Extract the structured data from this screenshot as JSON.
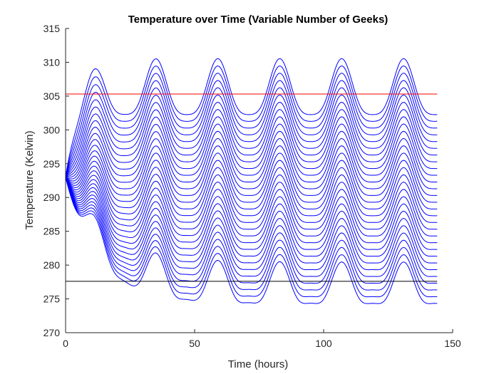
{
  "chart_data": {
    "type": "line",
    "title": "Temperature over Time (Variable Number of Geeks)",
    "xlabel": "Time (hours)",
    "ylabel": "Temperature (Kelvin)",
    "xlim": [
      0,
      150
    ],
    "ylim": [
      270,
      315
    ],
    "xticks": [
      0,
      50,
      100,
      150
    ],
    "yticks": [
      270,
      275,
      280,
      285,
      290,
      295,
      300,
      305,
      310,
      315
    ],
    "grid": false,
    "x_end": 144,
    "series_color": "#0000ff",
    "series_profile": {
      "initial_value": 293,
      "count": 29,
      "lowest_curve_mean": 276.5,
      "highest_curve_mean": 305.5,
      "oscillation_period_hours": 24,
      "oscillation_amplitude": 3.6,
      "peak_hours": [
        11,
        35,
        59,
        83,
        107,
        131
      ],
      "trough_hours": [
        23,
        47,
        71,
        95,
        119,
        143
      ]
    },
    "reference_lines": [
      {
        "y": 305.3,
        "color": "#ff0000"
      },
      {
        "y": 277.6,
        "color": "#000000"
      }
    ]
  }
}
